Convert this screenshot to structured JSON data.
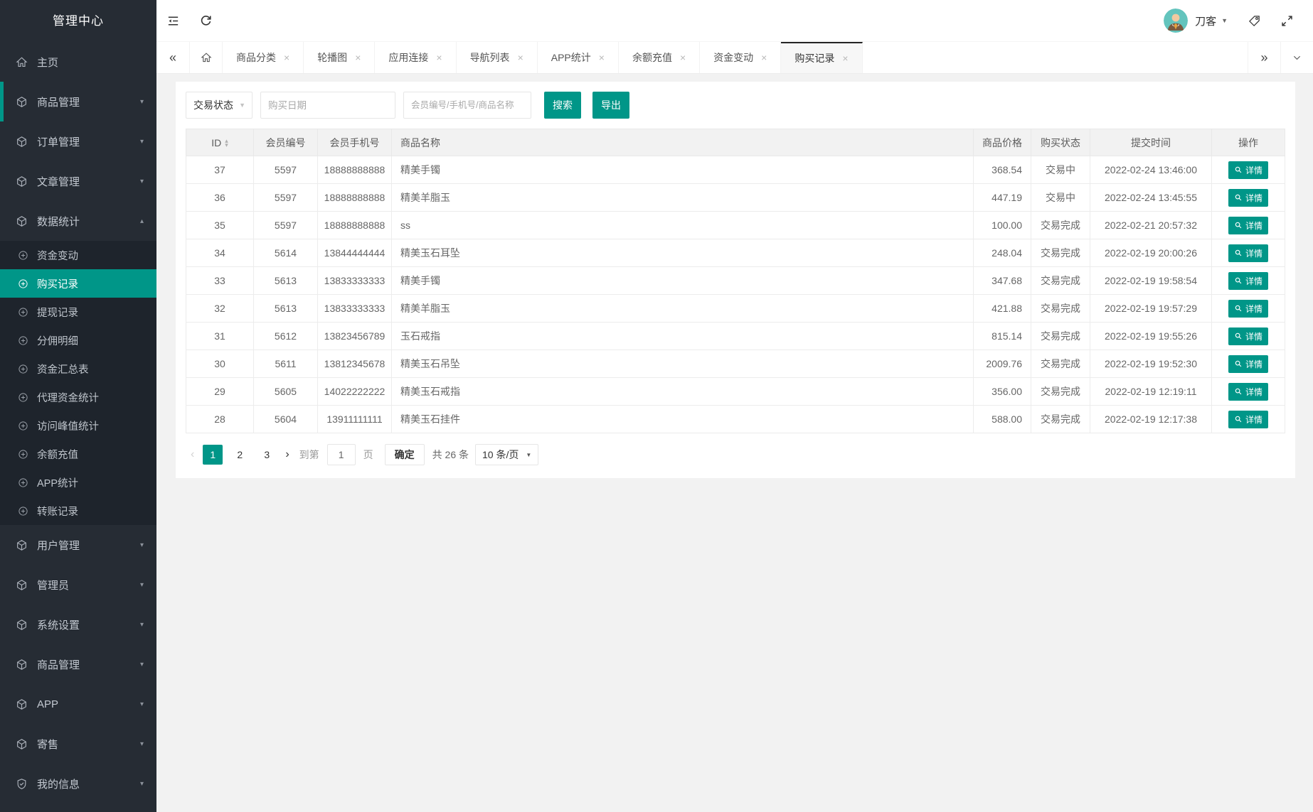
{
  "app": {
    "title": "管理中心"
  },
  "topbar": {
    "username": "刀客"
  },
  "sidebar": {
    "items": [
      {
        "label": "主页",
        "icon": "home-icon"
      },
      {
        "label": "商品管理",
        "icon": "cube-icon",
        "chevron": "down",
        "accent": true
      },
      {
        "label": "订单管理",
        "icon": "cube-icon",
        "chevron": "down"
      },
      {
        "label": "文章管理",
        "icon": "cube-icon",
        "chevron": "down"
      },
      {
        "label": "数据统计",
        "icon": "cube-icon",
        "chevron": "up",
        "open": true,
        "children": [
          {
            "label": "资金变动"
          },
          {
            "label": "购买记录",
            "active": true
          },
          {
            "label": "提现记录"
          },
          {
            "label": "分佣明细"
          },
          {
            "label": "资金汇总表"
          },
          {
            "label": "代理资金统计"
          },
          {
            "label": "访问峰值统计"
          },
          {
            "label": "余额充值"
          },
          {
            "label": "APP统计"
          },
          {
            "label": "转账记录"
          }
        ]
      },
      {
        "label": "用户管理",
        "icon": "cube-icon",
        "chevron": "down"
      },
      {
        "label": "管理员",
        "icon": "cube-icon",
        "chevron": "down"
      },
      {
        "label": "系统设置",
        "icon": "cube-icon",
        "chevron": "down"
      },
      {
        "label": "商品管理",
        "icon": "cube-icon",
        "chevron": "down"
      },
      {
        "label": "APP",
        "icon": "cube-icon",
        "chevron": "down"
      },
      {
        "label": "寄售",
        "icon": "cube-icon",
        "chevron": "down"
      },
      {
        "label": "我的信息",
        "icon": "shield-icon",
        "chevron": "down"
      }
    ]
  },
  "tabs": {
    "items": [
      {
        "label": "商品分类",
        "closable": true
      },
      {
        "label": "轮播图",
        "closable": true
      },
      {
        "label": "应用连接",
        "closable": true
      },
      {
        "label": "导航列表",
        "closable": true
      },
      {
        "label": "APP统计",
        "closable": true
      },
      {
        "label": "余额充值",
        "closable": true
      },
      {
        "label": "资金变动",
        "closable": true
      },
      {
        "label": "购买记录",
        "closable": true,
        "active": true
      }
    ]
  },
  "filters": {
    "status": "交易状态",
    "date_placeholder": "购买日期",
    "keyword_placeholder": "会员编号/手机号/商品名称",
    "search": "搜索",
    "export": "导出"
  },
  "table": {
    "columns": [
      {
        "label": "ID",
        "sortable": true
      },
      {
        "label": "会员编号"
      },
      {
        "label": "会员手机号"
      },
      {
        "label": "商品名称"
      },
      {
        "label": "商品价格"
      },
      {
        "label": "购买状态"
      },
      {
        "label": "提交时间"
      },
      {
        "label": "操作"
      }
    ],
    "action_label": "详情",
    "rows": [
      {
        "id": "37",
        "member_no": "5597",
        "phone": "18888888888",
        "product": "精美手镯",
        "price": "368.54",
        "status": "交易中",
        "time": "2022-02-24 13:46:00"
      },
      {
        "id": "36",
        "member_no": "5597",
        "phone": "18888888888",
        "product": "精美羊脂玉",
        "price": "447.19",
        "status": "交易中",
        "time": "2022-02-24 13:45:55"
      },
      {
        "id": "35",
        "member_no": "5597",
        "phone": "18888888888",
        "product": "ss",
        "price": "100.00",
        "status": "交易完成",
        "time": "2022-02-21 20:57:32"
      },
      {
        "id": "34",
        "member_no": "5614",
        "phone": "13844444444",
        "product": "精美玉石耳坠",
        "price": "248.04",
        "status": "交易完成",
        "time": "2022-02-19 20:00:26"
      },
      {
        "id": "33",
        "member_no": "5613",
        "phone": "13833333333",
        "product": "精美手镯",
        "price": "347.68",
        "status": "交易完成",
        "time": "2022-02-19 19:58:54"
      },
      {
        "id": "32",
        "member_no": "5613",
        "phone": "13833333333",
        "product": "精美羊脂玉",
        "price": "421.88",
        "status": "交易完成",
        "time": "2022-02-19 19:57:29"
      },
      {
        "id": "31",
        "member_no": "5612",
        "phone": "13823456789",
        "product": "玉石戒指",
        "price": "815.14",
        "status": "交易完成",
        "time": "2022-02-19 19:55:26"
      },
      {
        "id": "30",
        "member_no": "5611",
        "phone": "13812345678",
        "product": "精美玉石吊坠",
        "price": "2009.76",
        "status": "交易完成",
        "time": "2022-02-19 19:52:30"
      },
      {
        "id": "29",
        "member_no": "5605",
        "phone": "14022222222",
        "product": "精美玉石戒指",
        "price": "356.00",
        "status": "交易完成",
        "time": "2022-02-19 12:19:11"
      },
      {
        "id": "28",
        "member_no": "5604",
        "phone": "13911111111",
        "product": "精美玉石挂件",
        "price": "588.00",
        "status": "交易完成",
        "time": "2022-02-19 12:17:38"
      }
    ]
  },
  "pagination": {
    "pages": [
      "1",
      "2",
      "3"
    ],
    "active_page": "1",
    "goto_prefix": "到第",
    "goto_value": "1",
    "goto_suffix": "页",
    "confirm": "确定",
    "total": "共 26 条",
    "per_page": "10 条/页"
  },
  "colors": {
    "accent": "#009688",
    "sidebar_bg": "#262c34",
    "submenu_bg": "#1e242c"
  }
}
